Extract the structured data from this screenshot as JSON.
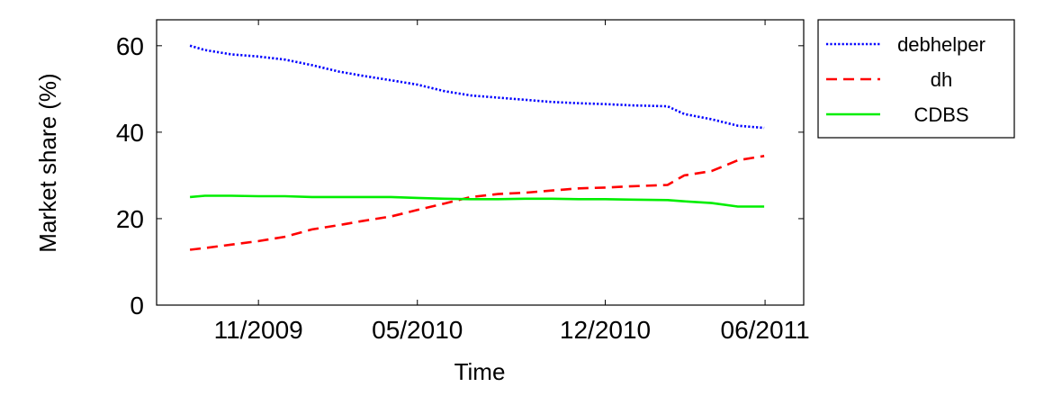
{
  "chart_data": {
    "type": "line",
    "xlabel": "Time",
    "ylabel": "Market share (%)",
    "ylim": [
      0,
      66
    ],
    "yticks": [
      0,
      20,
      40,
      60
    ],
    "xlim": [
      "2009-07-08",
      "2011-07-15"
    ],
    "xticks": [
      {
        "date": "2009-11-01",
        "label": "11/2009"
      },
      {
        "date": "2010-05-01",
        "label": "05/2010"
      },
      {
        "date": "2010-12-01",
        "label": "12/2010"
      },
      {
        "date": "2011-06-01",
        "label": "06/2011"
      }
    ],
    "grid": false,
    "legend_position": "outside-right",
    "series": [
      {
        "name": "debhelper",
        "color": "#0000ff",
        "style": "dotted",
        "points": [
          [
            "2009-08-15",
            60.0
          ],
          [
            "2009-09-01",
            59.0
          ],
          [
            "2009-10-01",
            58.0
          ],
          [
            "2009-11-01",
            57.5
          ],
          [
            "2009-12-01",
            56.8
          ],
          [
            "2010-01-01",
            55.5
          ],
          [
            "2010-02-01",
            54.0
          ],
          [
            "2010-03-01",
            53.0
          ],
          [
            "2010-04-01",
            52.0
          ],
          [
            "2010-05-01",
            51.0
          ],
          [
            "2010-06-01",
            49.5
          ],
          [
            "2010-07-01",
            48.5
          ],
          [
            "2010-08-01",
            48.0
          ],
          [
            "2010-09-01",
            47.5
          ],
          [
            "2010-10-01",
            47.0
          ],
          [
            "2010-11-01",
            46.7
          ],
          [
            "2010-12-01",
            46.5
          ],
          [
            "2011-01-01",
            46.2
          ],
          [
            "2011-02-10",
            46.0
          ],
          [
            "2011-03-01",
            44.2
          ],
          [
            "2011-04-01",
            43.0
          ],
          [
            "2011-05-01",
            41.5
          ],
          [
            "2011-05-31",
            41.0
          ]
        ]
      },
      {
        "name": "dh",
        "color": "#ff0000",
        "style": "dashed",
        "points": [
          [
            "2009-08-15",
            12.8
          ],
          [
            "2009-09-01",
            13.2
          ],
          [
            "2009-10-01",
            14.0
          ],
          [
            "2009-11-01",
            14.8
          ],
          [
            "2009-12-01",
            15.8
          ],
          [
            "2010-01-01",
            17.5
          ],
          [
            "2010-02-01",
            18.5
          ],
          [
            "2010-03-01",
            19.5
          ],
          [
            "2010-04-01",
            20.5
          ],
          [
            "2010-05-01",
            22.0
          ],
          [
            "2010-06-01",
            23.5
          ],
          [
            "2010-07-01",
            25.0
          ],
          [
            "2010-08-01",
            25.7
          ],
          [
            "2010-09-01",
            26.0
          ],
          [
            "2010-10-01",
            26.5
          ],
          [
            "2010-11-01",
            27.0
          ],
          [
            "2010-12-01",
            27.2
          ],
          [
            "2011-01-01",
            27.5
          ],
          [
            "2011-02-10",
            27.8
          ],
          [
            "2011-03-01",
            30.0
          ],
          [
            "2011-04-01",
            31.0
          ],
          [
            "2011-05-01",
            33.5
          ],
          [
            "2011-05-31",
            34.5
          ]
        ]
      },
      {
        "name": "CDBS",
        "color": "#00ee00",
        "style": "solid",
        "points": [
          [
            "2009-08-15",
            25.0
          ],
          [
            "2009-09-01",
            25.3
          ],
          [
            "2009-10-01",
            25.3
          ],
          [
            "2009-11-01",
            25.2
          ],
          [
            "2009-12-01",
            25.2
          ],
          [
            "2010-01-01",
            25.0
          ],
          [
            "2010-02-01",
            25.0
          ],
          [
            "2010-03-01",
            25.0
          ],
          [
            "2010-04-01",
            25.0
          ],
          [
            "2010-05-01",
            24.8
          ],
          [
            "2010-06-01",
            24.6
          ],
          [
            "2010-07-01",
            24.5
          ],
          [
            "2010-08-01",
            24.5
          ],
          [
            "2010-09-01",
            24.6
          ],
          [
            "2010-10-01",
            24.6
          ],
          [
            "2010-11-01",
            24.5
          ],
          [
            "2010-12-01",
            24.5
          ],
          [
            "2011-01-01",
            24.4
          ],
          [
            "2011-02-10",
            24.3
          ],
          [
            "2011-03-01",
            24.0
          ],
          [
            "2011-04-01",
            23.6
          ],
          [
            "2011-05-01",
            22.8
          ],
          [
            "2011-05-31",
            22.8
          ]
        ]
      }
    ]
  }
}
